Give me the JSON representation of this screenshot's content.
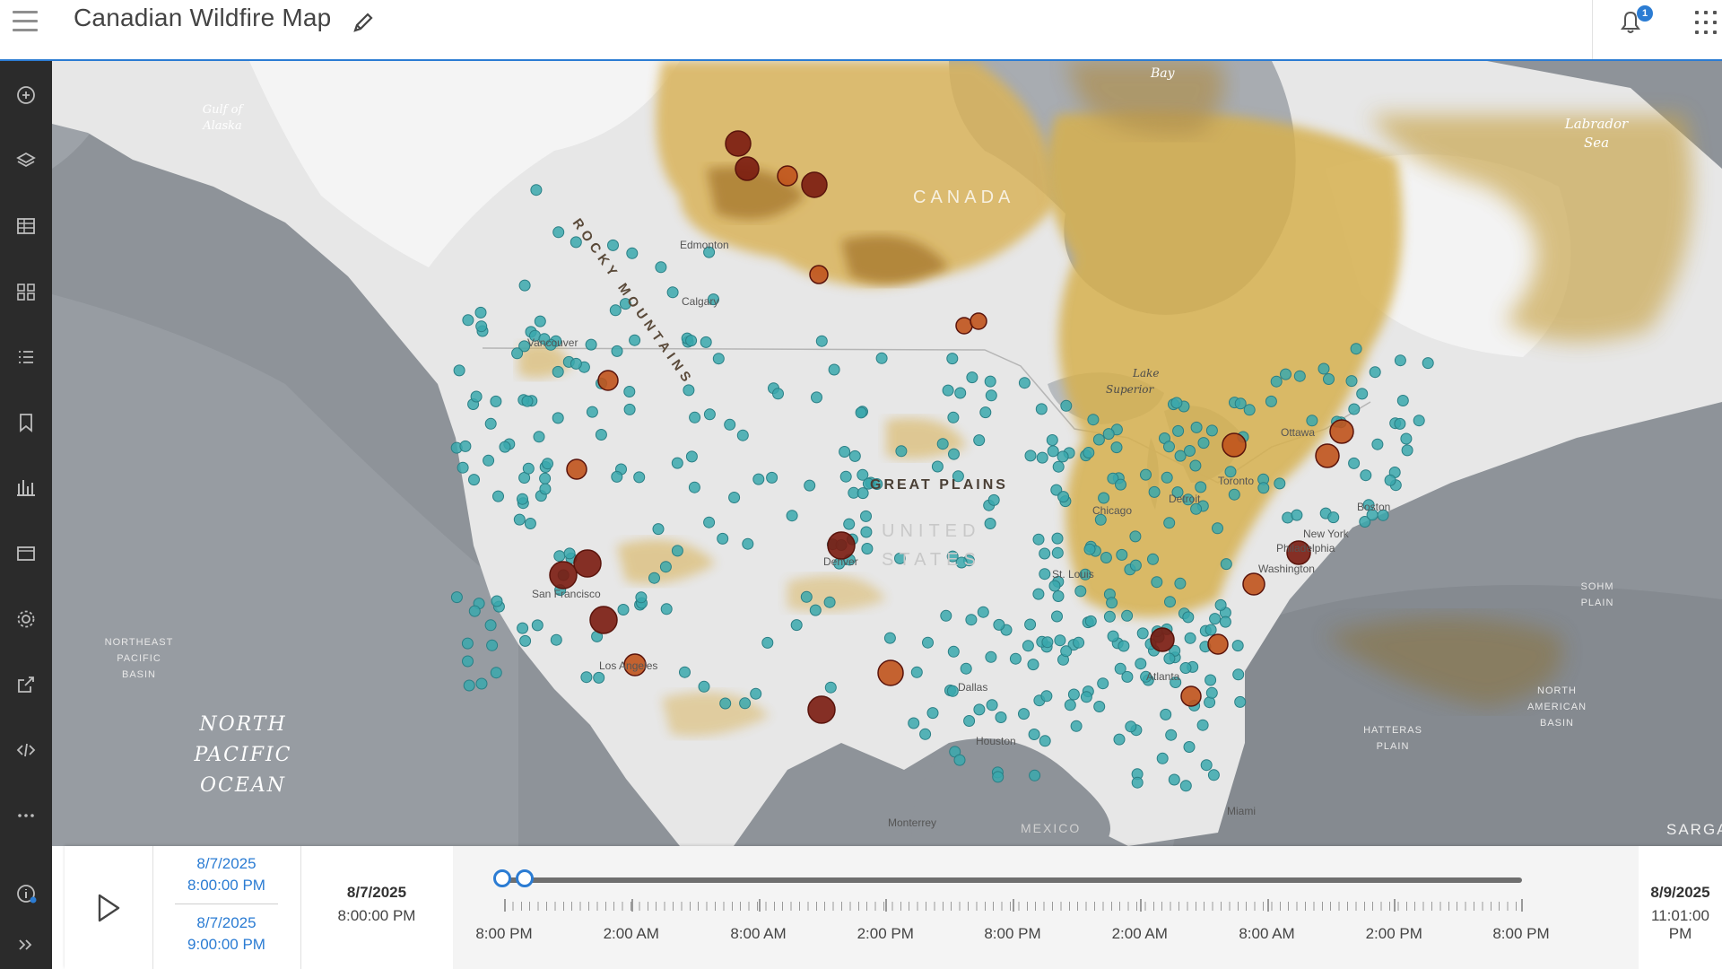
{
  "header": {
    "title": "Canadian Wildfire Map",
    "notification_count": "1",
    "icons": [
      "menu-icon",
      "pencil-icon",
      "bell-icon",
      "app-launcher-icon"
    ]
  },
  "sidebar": {
    "items": [
      "add-icon",
      "layers-icon",
      "table-icon",
      "basemap-icon",
      "legend-icon",
      "bookmark-icon",
      "chart-icon",
      "popup-icon",
      "settings-icon",
      "share-icon",
      "embed-icon",
      "more-icon",
      "info-icon",
      "expand-icon"
    ]
  },
  "map": {
    "labels": {
      "gulf_of_alaska": [
        "Gulf of",
        "Alaska"
      ],
      "bay": "Bay",
      "labrador_sea": [
        "Labrador",
        "Sea"
      ],
      "canada": "CANADA",
      "edmonton": "Edmonton",
      "calgary": "Calgary",
      "rocky_mountains": "ROCKY MOUNTAINS",
      "lake_superior": [
        "Lake",
        "Superior"
      ],
      "great_plains": "GREAT PLAINS",
      "united_states": [
        "UNITED",
        "STATES"
      ],
      "ottawa": "Ottawa",
      "toronto": "Toronto",
      "detroit": "Detroit",
      "chicago": "Chicago",
      "new_york": "New York",
      "philadelphia": "Philadelphia",
      "washington": "Washington",
      "boston": "Boston",
      "st_louis": "St. Louis",
      "denver": "Denver",
      "san_francisco": "San Francisco",
      "los_angeles": "Los Angeles",
      "dallas": "Dallas",
      "houston": "Houston",
      "atlanta": "Atlanta",
      "miami": "Miami",
      "monterrey": "Monterrey",
      "mexico": "MEXICO",
      "vancouver": "Vancouver",
      "north_pacific_ocean": [
        "NORTH",
        "PACIFIC",
        "OCEAN"
      ],
      "northeast_pacific_basin": [
        "NORTHEAST",
        "PACIFIC",
        "BASIN"
      ],
      "sohm_plain": [
        "SOHM",
        "PLAIN"
      ],
      "north_american_basin": [
        "NORTH",
        "AMERICAN",
        "BASIN"
      ],
      "hatteras_plain": [
        "HATTERAS",
        "PLAIN"
      ],
      "sargasso": "SARGASSO"
    },
    "colors": {
      "ocean": "#8e9399",
      "land": "#e8e8e8",
      "smoke_light": "#d9b65a",
      "smoke_dark": "#a8741f",
      "station": "#39a8ad",
      "fire_small": "#c0531c",
      "fire_large": "#7a1b10"
    }
  },
  "timeline": {
    "range_start_date": "8/7/2025",
    "range_start_time": "8:00:00 PM",
    "range_end_date": "8/7/2025",
    "range_end_time": "9:00:00 PM",
    "current_date": "8/7/2025",
    "current_time": "8:00:00 PM",
    "end_date": "8/9/2025",
    "end_time": "11:01:00 PM",
    "tick_labels": [
      "8:00 PM",
      "2:00 AM",
      "8:00 AM",
      "2:00 PM",
      "8:00 PM",
      "2:00 AM",
      "8:00 AM",
      "2:00 PM",
      "8:00 PM"
    ],
    "progress": 0.01
  }
}
